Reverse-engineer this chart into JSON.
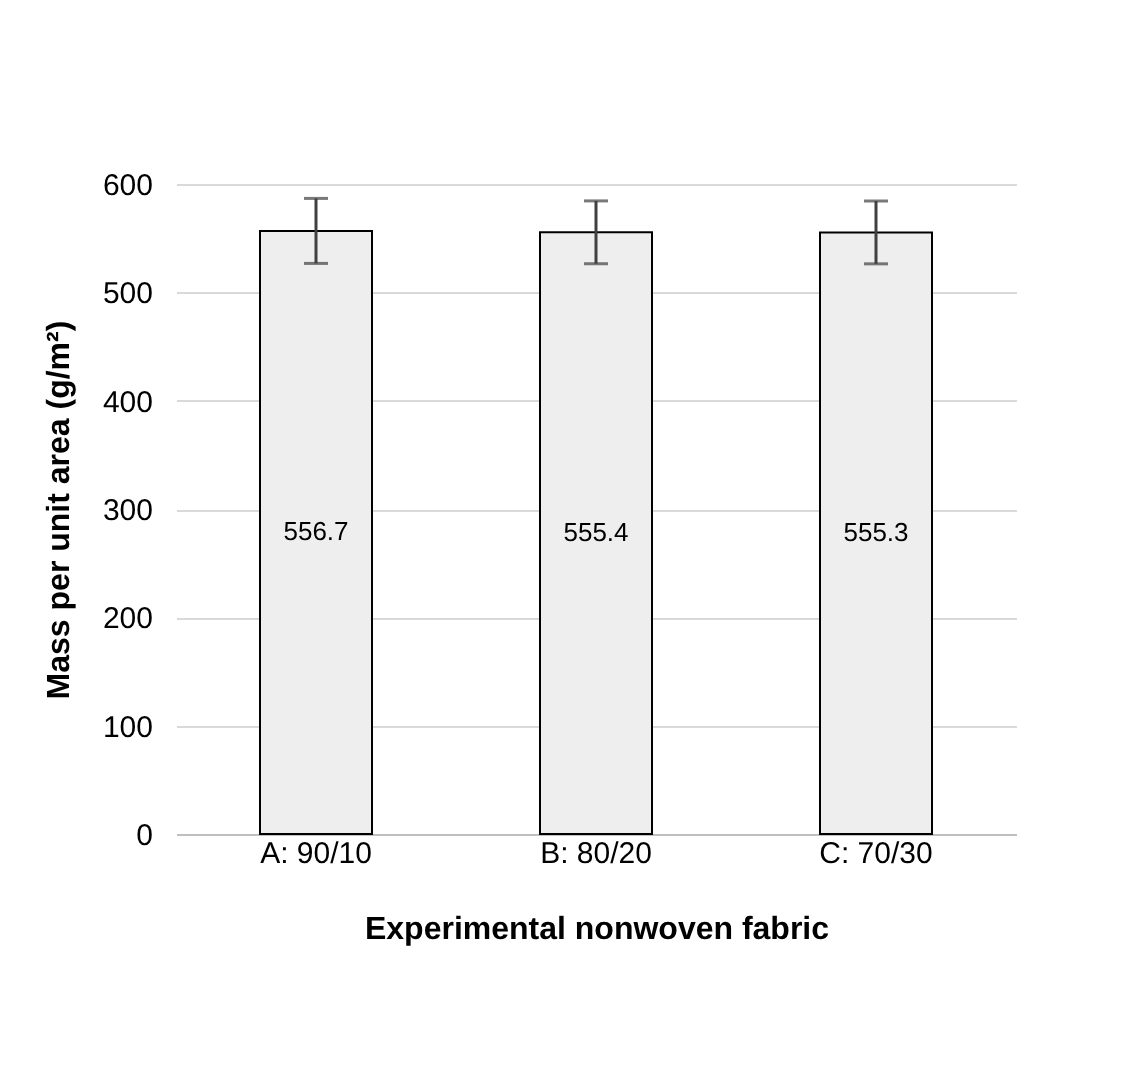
{
  "chart_data": {
    "type": "bar",
    "xlabel": "Experimental nonwoven fabric",
    "ylabel": "Mass per unit area (g/m²)",
    "categories": [
      "A: 90/10",
      "B: 80/20",
      "C: 70/30"
    ],
    "values": [
      556.7,
      555.4,
      555.3
    ],
    "errors": [
      30,
      29,
      29
    ],
    "color": "#eeeeee",
    "ylim": [
      0,
      600
    ],
    "yticks": [
      0,
      100,
      200,
      300,
      400,
      500,
      600
    ],
    "grid": "y",
    "data_labels": true
  }
}
